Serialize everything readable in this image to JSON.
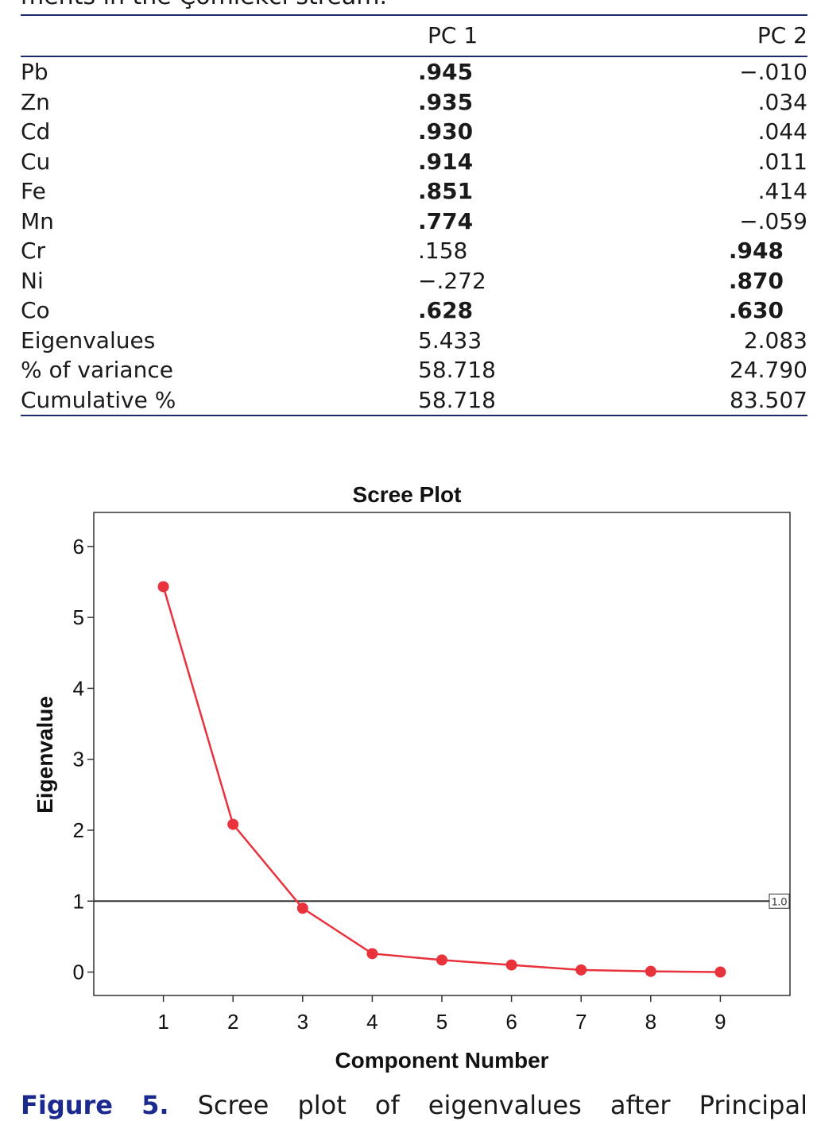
{
  "top_fragment": "ments in the Çomlekci stream.",
  "table": {
    "headers": [
      "",
      "PC 1",
      "PC 2"
    ],
    "rows": [
      {
        "name": "Pb",
        "pc1": ".945",
        "pc2": "−.010",
        "pc1_bold": true,
        "pc2_bold": false
      },
      {
        "name": "Zn",
        "pc1": ".935",
        "pc2": ".034",
        "pc1_bold": true,
        "pc2_bold": false
      },
      {
        "name": "Cd",
        "pc1": ".930",
        "pc2": ".044",
        "pc1_bold": true,
        "pc2_bold": false
      },
      {
        "name": "Cu",
        "pc1": ".914",
        "pc2": ".011",
        "pc1_bold": true,
        "pc2_bold": false
      },
      {
        "name": "Fe",
        "pc1": ".851",
        "pc2": ".414",
        "pc1_bold": true,
        "pc2_bold": false
      },
      {
        "name": "Mn",
        "pc1": ".774",
        "pc2": "−.059",
        "pc1_bold": true,
        "pc2_bold": false
      },
      {
        "name": "Cr",
        "pc1": ".158",
        "pc2": ".948",
        "pc1_bold": false,
        "pc2_bold": true
      },
      {
        "name": "Ni",
        "pc1": "−.272",
        "pc2": ".870",
        "pc1_bold": false,
        "pc2_bold": true
      },
      {
        "name": "Co",
        "pc1": ".628",
        "pc2": ".630",
        "pc1_bold": true,
        "pc2_bold": true
      },
      {
        "name": "Eigenvalues",
        "pc1": "5.433",
        "pc2": "2.083",
        "pc1_bold": false,
        "pc2_bold": false
      },
      {
        "name": "% of variance",
        "pc1": "58.718",
        "pc2": "24.790",
        "pc1_bold": false,
        "pc2_bold": false
      },
      {
        "name": "Cumulative %",
        "pc1": "58.718",
        "pc2": "83.507",
        "pc1_bold": false,
        "pc2_bold": false
      }
    ]
  },
  "chart_data": {
    "type": "line",
    "title": "Scree Plot",
    "xlabel": "Component Number",
    "ylabel": "Eigenvalue",
    "x": [
      1,
      2,
      3,
      4,
      5,
      6,
      7,
      8,
      9
    ],
    "series": [
      {
        "values": [
          5.433,
          2.083,
          0.9,
          0.26,
          0.17,
          0.1,
          0.03,
          0.01,
          0.0
        ],
        "color": "#e8323c"
      }
    ],
    "xticks": [
      1,
      2,
      3,
      4,
      5,
      6,
      7,
      8,
      9
    ],
    "yticks": [
      0,
      1,
      2,
      3,
      4,
      5,
      6
    ],
    "xlim": [
      0,
      10
    ],
    "ylim": [
      -0.33,
      6.48
    ],
    "reference_line": {
      "y": 1.0,
      "label": "1.0",
      "color": "#333333"
    },
    "grid": false
  },
  "caption": {
    "figure_label": "Figure",
    "figure_number": "5.",
    "words": [
      "Scree",
      "plot",
      "of",
      "eigenvalues",
      "after",
      "Principal"
    ]
  }
}
